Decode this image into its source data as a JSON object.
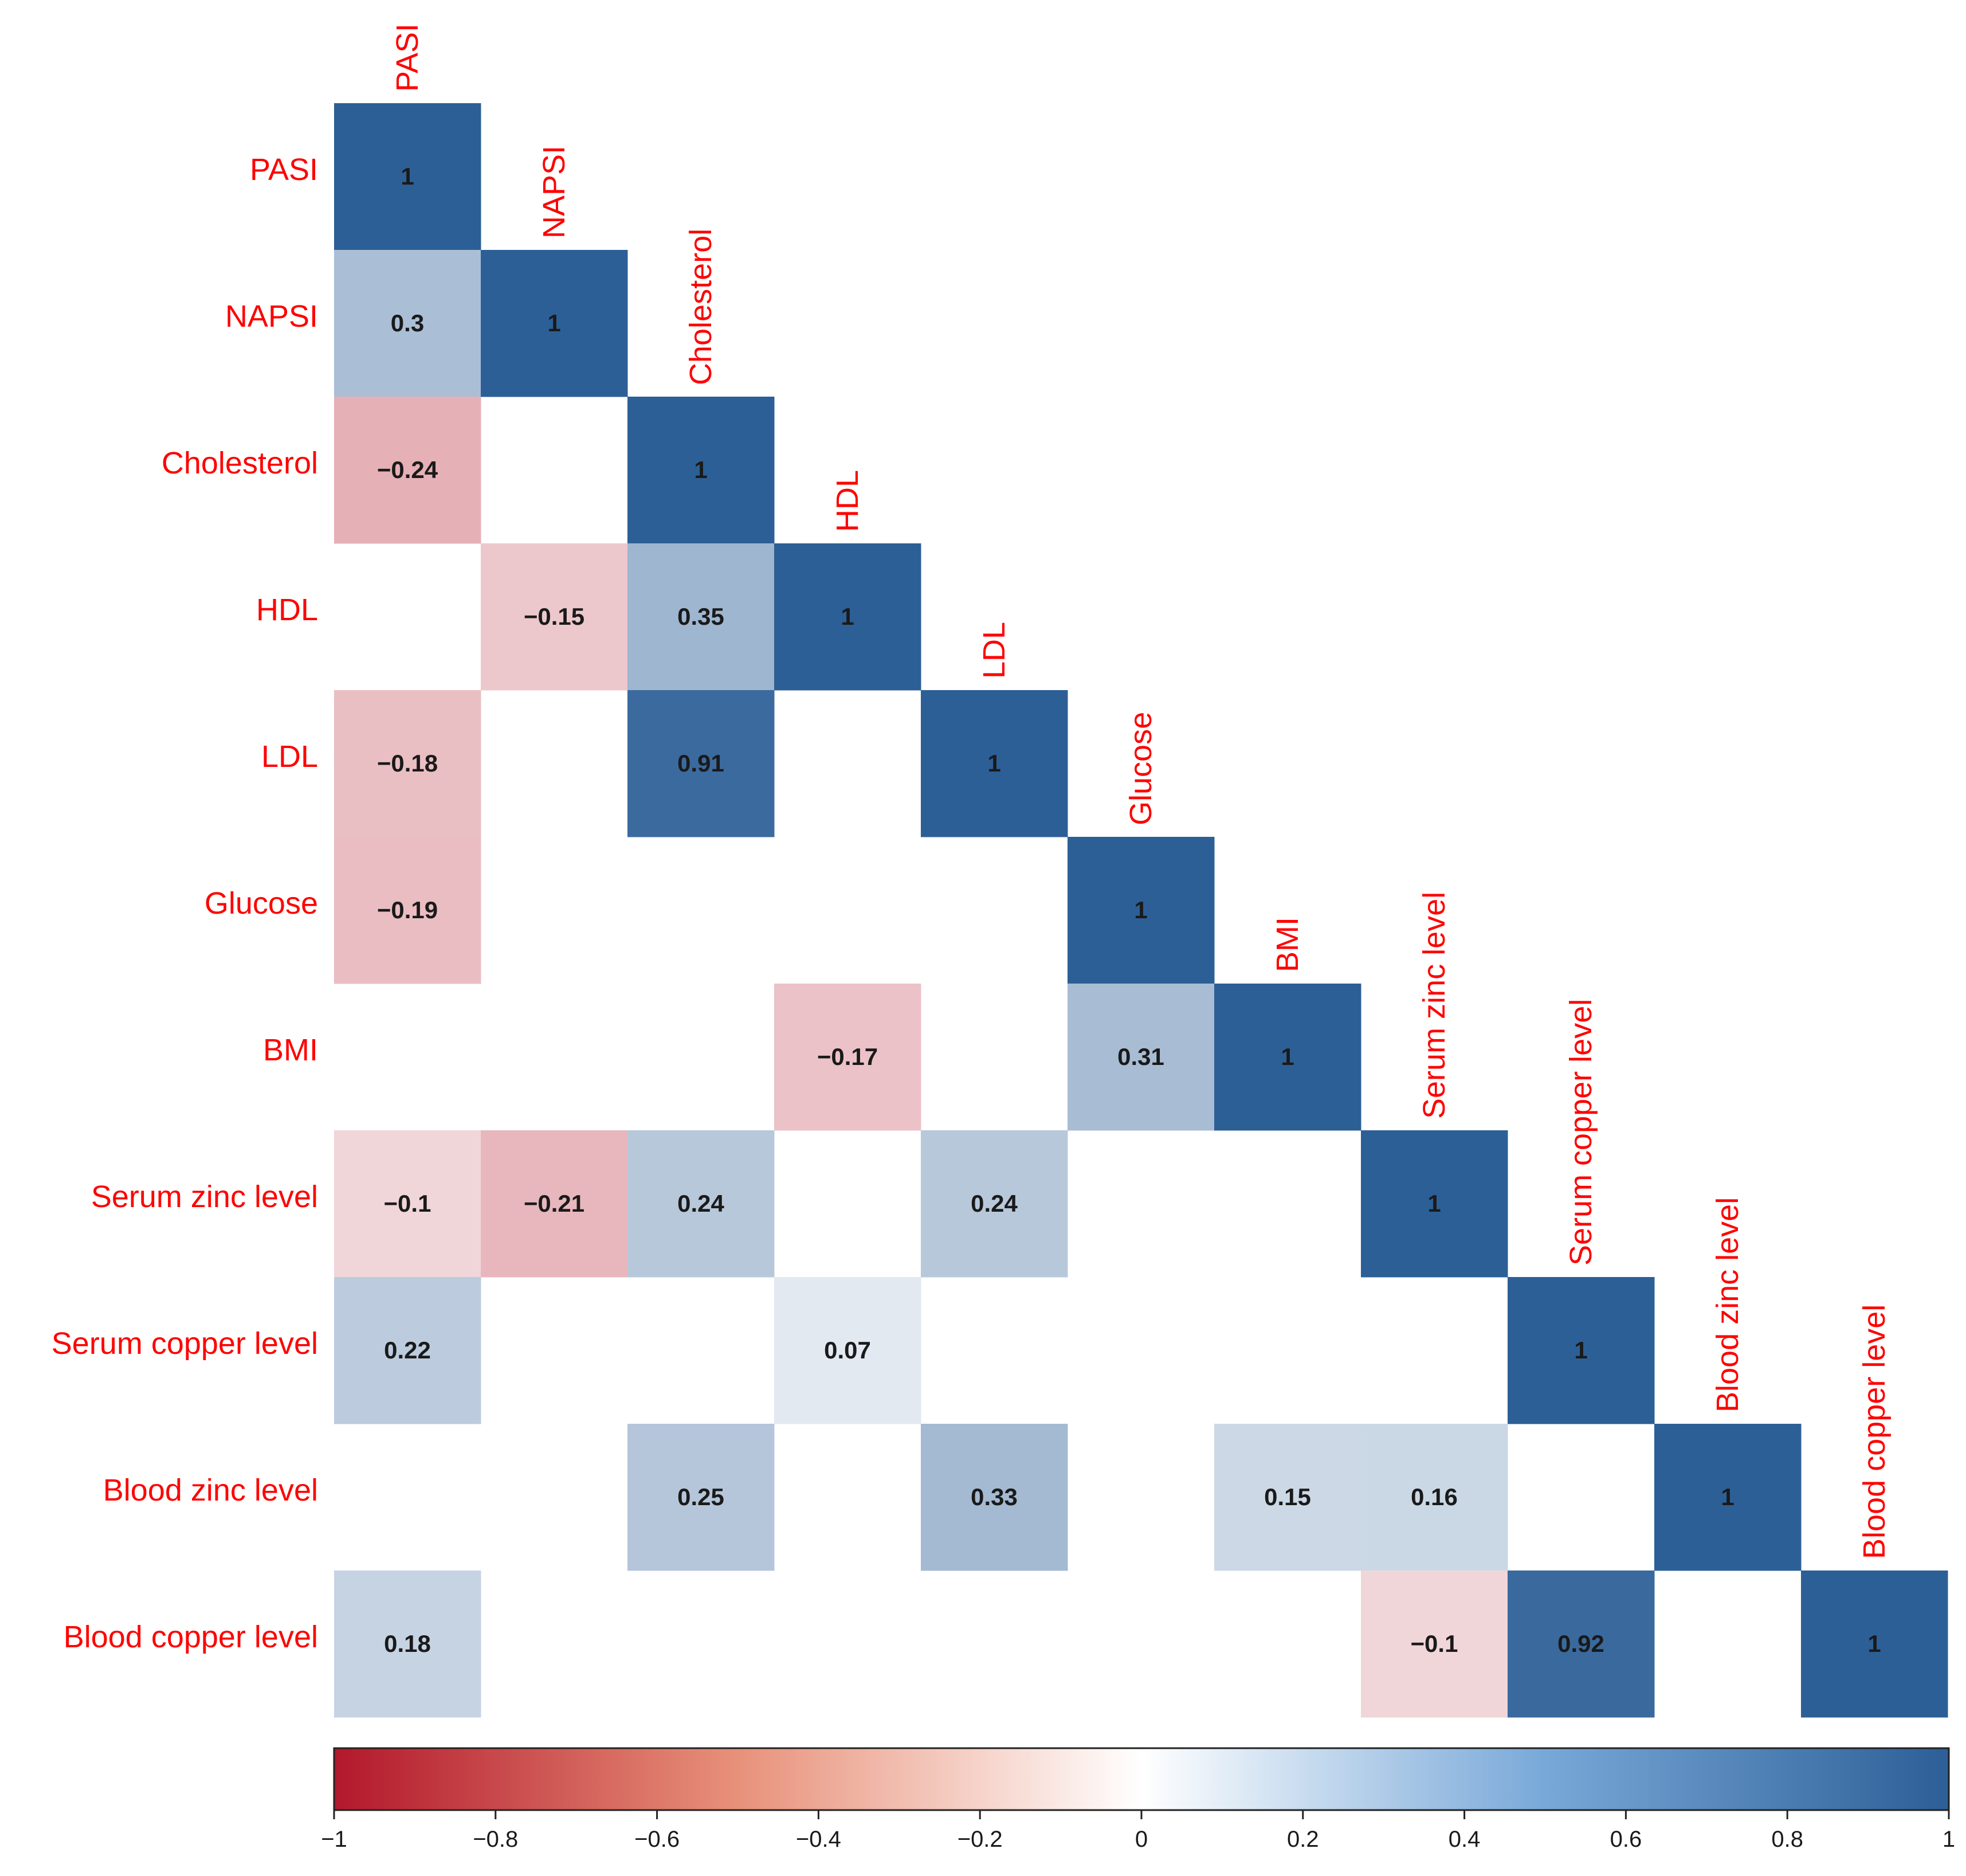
{
  "chart_data": {
    "type": "heatmap",
    "variables": [
      "PASI",
      "NAPSI",
      "Cholesterol",
      "HDL",
      "LDL",
      "Glucose",
      "BMI",
      "Serum zinc level",
      "Serum copper level",
      "Blood zinc level",
      "Blood copper level"
    ],
    "row_labels": [
      "PASI",
      "NAPSI",
      "Cholesterol",
      "HDL",
      "LDL",
      "Glucose",
      "BMI",
      "Serum zinc level",
      "Serum copper level",
      "Blood zinc level",
      "Blood copper level"
    ],
    "col_labels": [
      "PASI",
      "NAPSI",
      "Cholesterol",
      "HDL",
      "LDL",
      "Glucose",
      "BMI",
      "Serum zinc level",
      "Serum copper level",
      "Blood zinc level",
      "Blood copper level"
    ],
    "matrix": [
      [
        1,
        null,
        null,
        null,
        null,
        null,
        null,
        null,
        null,
        null,
        null
      ],
      [
        0.3,
        1,
        null,
        null,
        null,
        null,
        null,
        null,
        null,
        null,
        null
      ],
      [
        -0.24,
        null,
        1,
        null,
        null,
        null,
        null,
        null,
        null,
        null,
        null
      ],
      [
        null,
        -0.15,
        0.35,
        1,
        null,
        null,
        null,
        null,
        null,
        null,
        null
      ],
      [
        -0.18,
        null,
        0.91,
        null,
        1,
        null,
        null,
        null,
        null,
        null,
        null
      ],
      [
        -0.19,
        null,
        null,
        null,
        null,
        1,
        null,
        null,
        null,
        null,
        null
      ],
      [
        null,
        null,
        null,
        -0.17,
        null,
        0.31,
        1,
        null,
        null,
        null,
        null
      ],
      [
        -0.1,
        -0.21,
        0.24,
        null,
        0.24,
        null,
        null,
        1,
        null,
        null,
        null
      ],
      [
        0.22,
        null,
        null,
        0.07,
        null,
        null,
        null,
        null,
        1,
        null,
        null
      ],
      [
        null,
        null,
        0.25,
        null,
        0.33,
        null,
        0.15,
        0.16,
        null,
        1,
        null
      ],
      [
        0.18,
        null,
        null,
        null,
        null,
        null,
        null,
        -0.1,
        0.92,
        null,
        1
      ]
    ],
    "cell_labels": [
      [
        "1",
        null,
        null,
        null,
        null,
        null,
        null,
        null,
        null,
        null,
        null
      ],
      [
        "0.3",
        "1",
        null,
        null,
        null,
        null,
        null,
        null,
        null,
        null,
        null
      ],
      [
        "−0.24",
        null,
        "1",
        null,
        null,
        null,
        null,
        null,
        null,
        null,
        null
      ],
      [
        null,
        "−0.15",
        "0.35",
        "1",
        null,
        null,
        null,
        null,
        null,
        null,
        null
      ],
      [
        "−0.18",
        null,
        "0.91",
        null,
        "1",
        null,
        null,
        null,
        null,
        null,
        null
      ],
      [
        "−0.19",
        null,
        null,
        null,
        null,
        "1",
        null,
        null,
        null,
        null,
        null
      ],
      [
        null,
        null,
        null,
        "−0.17",
        null,
        "0.31",
        "1",
        null,
        null,
        null,
        null
      ],
      [
        "−0.1",
        "−0.21",
        "0.24",
        null,
        "0.24",
        null,
        null,
        "1",
        null,
        null,
        null
      ],
      [
        "0.22",
        null,
        null,
        "0.07",
        null,
        null,
        null,
        null,
        "1",
        null,
        null
      ],
      [
        null,
        null,
        "0.25",
        null,
        "0.33",
        null,
        "0.15",
        "0.16",
        null,
        "1",
        null
      ],
      [
        "0.18",
        null,
        null,
        null,
        null,
        null,
        null,
        "−0.1",
        "0.92",
        null,
        "1"
      ]
    ],
    "colorbar": {
      "range": [
        -1,
        1
      ],
      "ticks": [
        -1,
        -0.8,
        -0.6,
        -0.4,
        -0.2,
        0,
        0.2,
        0.4,
        0.6,
        0.8,
        1
      ],
      "tick_labels": [
        "−1",
        "−0.8",
        "−0.6",
        "−0.4",
        "−0.2",
        "0",
        "0.2",
        "0.4",
        "0.6",
        "0.8",
        "1"
      ],
      "colors": {
        "neg": "#b2182b",
        "mid": "#ffffff",
        "pos": "#2d5f97"
      }
    },
    "label_color": "#ff0000"
  }
}
